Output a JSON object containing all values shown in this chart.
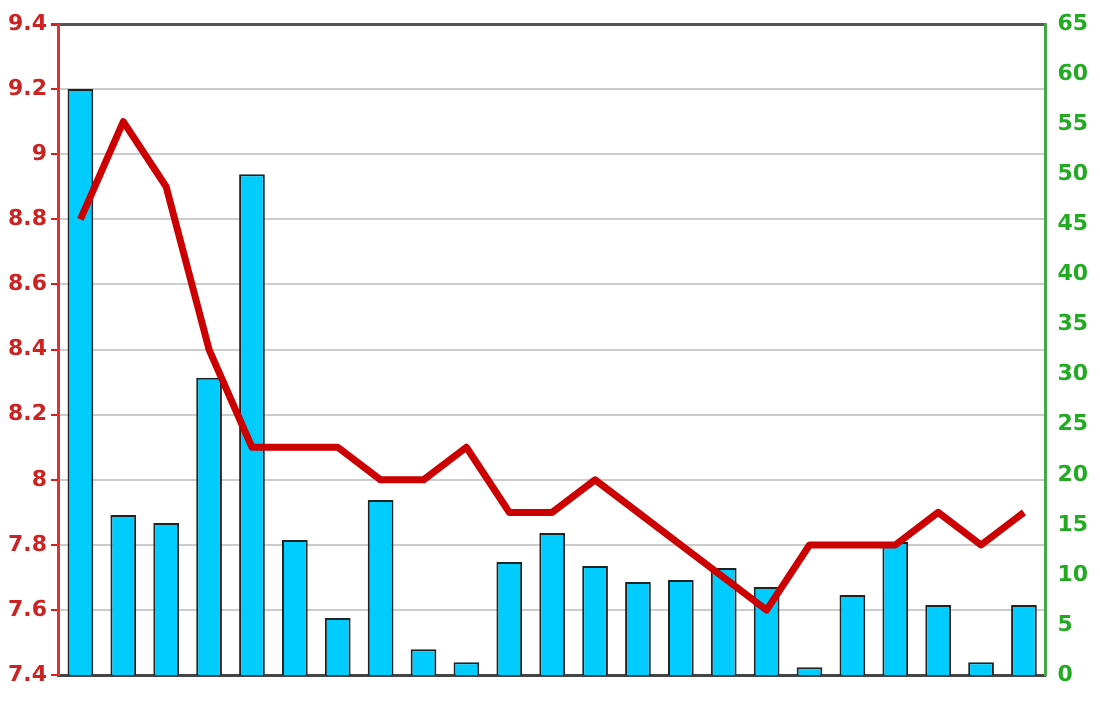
{
  "chart_data": {
    "type": "bar",
    "categories": [
      null,
      null,
      null,
      null,
      null,
      null,
      null,
      null,
      null,
      null,
      null,
      null,
      null,
      null,
      null,
      null,
      null,
      null,
      null,
      null,
      null,
      null,
      null
    ],
    "series": [
      {
        "axis": "y2",
        "color": "#00ccff",
        "values": [
          58.5,
          16,
          15.2,
          29.7,
          50,
          13.5,
          5.7,
          17.5,
          2.6,
          1.3,
          11.3,
          14.2,
          10.9,
          9.3,
          9.5,
          10.7,
          8.8,
          0.8,
          8,
          13.3,
          7,
          1.3,
          7
        ]
      },
      {
        "type": "line",
        "axis": "y",
        "color": "#cc0000",
        "values": [
          8.8,
          9.1,
          8.9,
          8.4,
          8.1,
          8.1,
          8.1,
          8.0,
          8.0,
          8.1,
          7.9,
          7.9,
          8.0,
          7.9,
          7.8,
          7.7,
          7.6,
          7.8,
          7.8,
          7.8,
          7.9,
          7.8,
          7.9
        ]
      }
    ],
    "ylim": [
      7.4,
      9.4
    ],
    "yticks": [
      7.4,
      7.6,
      7.8,
      8,
      8.2,
      8.4,
      8.6,
      8.8,
      9,
      9.2,
      9.4
    ],
    "y2lim": [
      0,
      65
    ],
    "y2ticks": [
      0,
      5,
      10,
      15,
      20,
      25,
      30,
      35,
      40,
      45,
      50,
      55,
      60,
      65
    ],
    "grid": "y",
    "legend": false,
    "marker": "none",
    "line_style": "solid"
  }
}
